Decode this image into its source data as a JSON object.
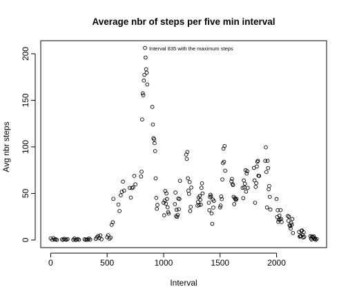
{
  "chart_data": {
    "type": "scatter",
    "title": "Average nbr of steps per five min interval",
    "xlabel": "Interval",
    "ylabel": "Avg nbr steps",
    "xlim": [
      -88,
      2443
    ],
    "ylim": [
      -8.2,
      214
    ],
    "x_ticks": [
      0,
      500,
      1000,
      1500,
      2000
    ],
    "y_ticks": [
      0,
      50,
      100,
      150,
      200
    ],
    "grid": false,
    "legend": "none",
    "annotation": {
      "text": "Interval 835 with the maximum steps",
      "x": 835,
      "y": 206
    },
    "marker": {
      "shape": "open-circle",
      "color": "#000000"
    },
    "series": [
      {
        "x": [
          0,
          15,
          25,
          35,
          45,
          55,
          100,
          110,
          120,
          130,
          140,
          150,
          200,
          210,
          220,
          230,
          240,
          250,
          300,
          310,
          320,
          330,
          340,
          350,
          400,
          410,
          420,
          430,
          440,
          450,
          500,
          510,
          520,
          530,
          540,
          550,
          555,
          600,
          610,
          620,
          630,
          640,
          650,
          700,
          710,
          720,
          730,
          740,
          750,
          800,
          805,
          810,
          815,
          820,
          825,
          830,
          835,
          840,
          845,
          850,
          855,
          900,
          905,
          910,
          915,
          920,
          925,
          930,
          935,
          940,
          945,
          1000,
          1005,
          1010,
          1015,
          1020,
          1025,
          1030,
          1035,
          1040,
          1045,
          1100,
          1105,
          1110,
          1115,
          1120,
          1125,
          1130,
          1135,
          1140,
          1145,
          1200,
          1205,
          1210,
          1215,
          1220,
          1225,
          1230,
          1235,
          1240,
          1245,
          1300,
          1305,
          1310,
          1315,
          1320,
          1325,
          1330,
          1335,
          1340,
          1345,
          1400,
          1405,
          1410,
          1415,
          1420,
          1425,
          1430,
          1435,
          1440,
          1445,
          1500,
          1505,
          1510,
          1515,
          1520,
          1525,
          1530,
          1535,
          1540,
          1545,
          1600,
          1605,
          1610,
          1615,
          1620,
          1625,
          1630,
          1635,
          1640,
          1645,
          1700,
          1705,
          1710,
          1715,
          1720,
          1725,
          1730,
          1735,
          1740,
          1745,
          1800,
          1805,
          1810,
          1815,
          1820,
          1825,
          1830,
          1835,
          1840,
          1845,
          1900,
          1905,
          1910,
          1915,
          1920,
          1925,
          1930,
          1935,
          1940,
          1945,
          2000,
          2005,
          2010,
          2015,
          2020,
          2025,
          2030,
          2035,
          2040,
          2045,
          2100,
          2105,
          2110,
          2115,
          2120,
          2125,
          2130,
          2135,
          2140,
          2145,
          2200,
          2205,
          2210,
          2215,
          2220,
          2225,
          2230,
          2235,
          2240,
          2245,
          2300,
          2305,
          2310,
          2315,
          2320,
          2325,
          2330,
          2335,
          2340,
          2345,
          2355
        ],
        "y": [
          1.7,
          0.3,
          2.1,
          0.5,
          0.8,
          0.1,
          0.6,
          0.2,
          1.3,
          0.5,
          0.3,
          1.0,
          0.2,
          1.5,
          0.1,
          0.4,
          1.1,
          0.3,
          0.8,
          0.2,
          0.6,
          0.3,
          1.5,
          0.4,
          1.2,
          2.9,
          4.2,
          2.1,
          5.0,
          0.8,
          3.0,
          5.1,
          1.4,
          2.5,
          16.3,
          19.0,
          44.2,
          38.0,
          31.1,
          47.9,
          51.8,
          62.7,
          53.0,
          56.0,
          45.5,
          55.8,
          56.6,
          68.8,
          59.8,
          68.2,
          73.4,
          129.4,
          157.5,
          155.4,
          171.2,
          177.3,
          206.2,
          195.9,
          183.4,
          179.6,
          167.0,
          143.0,
          124.0,
          109.4,
          108.1,
          104.0,
          95.5,
          66.2,
          45.2,
          33.5,
          37.7,
          40.0,
          26.5,
          42.4,
          52.6,
          38.9,
          50.0,
          44.0,
          35.1,
          30.0,
          28.4,
          38.5,
          51.0,
          25.5,
          32.5,
          25.0,
          27.0,
          44.6,
          33.0,
          44.0,
          63.6,
          91.7,
          87.0,
          94.5,
          66.3,
          53.0,
          49.6,
          62.3,
          31.1,
          35.6,
          56.3,
          37.0,
          40.9,
          45.5,
          37.5,
          47.3,
          43.2,
          38.0,
          56.0,
          60.8,
          50.0,
          40.0,
          32.0,
          46.1,
          48.6,
          47.0,
          28.5,
          17.4,
          43.5,
          34.8,
          42.0,
          35.0,
          37.0,
          46.7,
          43.9,
          65.0,
          82.5,
          98.1,
          84.0,
          100.9,
          74.4,
          63.0,
          65.6,
          60.0,
          59.0,
          46.3,
          38.5,
          45.0,
          44.0,
          43.0,
          44.2,
          56.0,
          45.0,
          64.0,
          56.4,
          60.4,
          75.0,
          52.0,
          71.4,
          74.0,
          56.0,
          77.4,
          64.0,
          40.0,
          57.0,
          61.0,
          79.0,
          84.0,
          85.0,
          69.0,
          68.8,
          85.0,
          99.5,
          73.0,
          34.9,
          85.0,
          77.3,
          54.5,
          58.0,
          46.3,
          32.7,
          44.0,
          24.7,
          32.0,
          19.6,
          21.7,
          26.2,
          21.8,
          32.1,
          22.6,
          19.3,
          25.8,
          20.7,
          25.0,
          16.0,
          14.9,
          12.3,
          18.4,
          16.3,
          22.6,
          7.5,
          8.7,
          3.7,
          4.2,
          4.5,
          9.8,
          10.2,
          5.5,
          2.7,
          8.3,
          3.4,
          4.0,
          1.7,
          0.6,
          3.7,
          3.3,
          2.5,
          3.9,
          1.3,
          1.5,
          0.2,
          1.1
        ]
      }
    ]
  }
}
